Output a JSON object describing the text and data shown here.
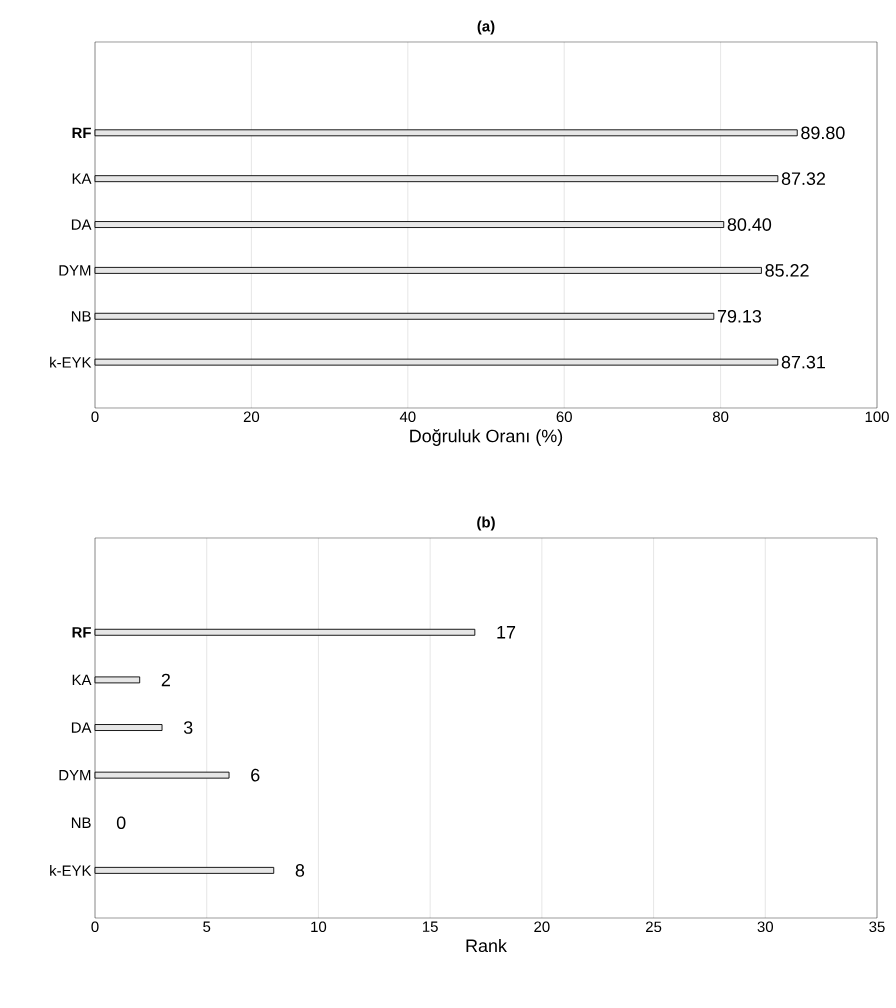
{
  "chart_data": [
    {
      "type": "bar",
      "orientation": "horizontal",
      "title": "(a)",
      "xlabel": "Doğruluk Oranı (%)",
      "categories": [
        "**RF**",
        "KA",
        "DA",
        "DYM",
        "NB",
        "k-EYK"
      ],
      "values": [
        89.8,
        87.32,
        80.4,
        85.22,
        79.13,
        87.31
      ],
      "value_labels": [
        "89.80",
        "87.32",
        "80.40",
        "85.22",
        "79.13",
        "87.31"
      ],
      "color": "#e6e6e6",
      "xlim": [
        0,
        100
      ],
      "xticks": [
        0,
        20,
        40,
        60,
        80,
        100
      ],
      "grid": "x"
    },
    {
      "type": "bar",
      "orientation": "horizontal",
      "title": "(b)",
      "xlabel": "Rank",
      "categories": [
        "**RF**",
        "KA",
        "DA",
        "DYM",
        "NB",
        "k-EYK"
      ],
      "values": [
        17,
        2,
        3,
        6,
        0,
        8
      ],
      "data_labels": true,
      "color": "#e6e6e6",
      "xlim": [
        0,
        35
      ],
      "xticks": [
        0,
        5,
        10,
        15,
        20,
        25,
        30,
        35
      ],
      "grid": "x"
    }
  ]
}
